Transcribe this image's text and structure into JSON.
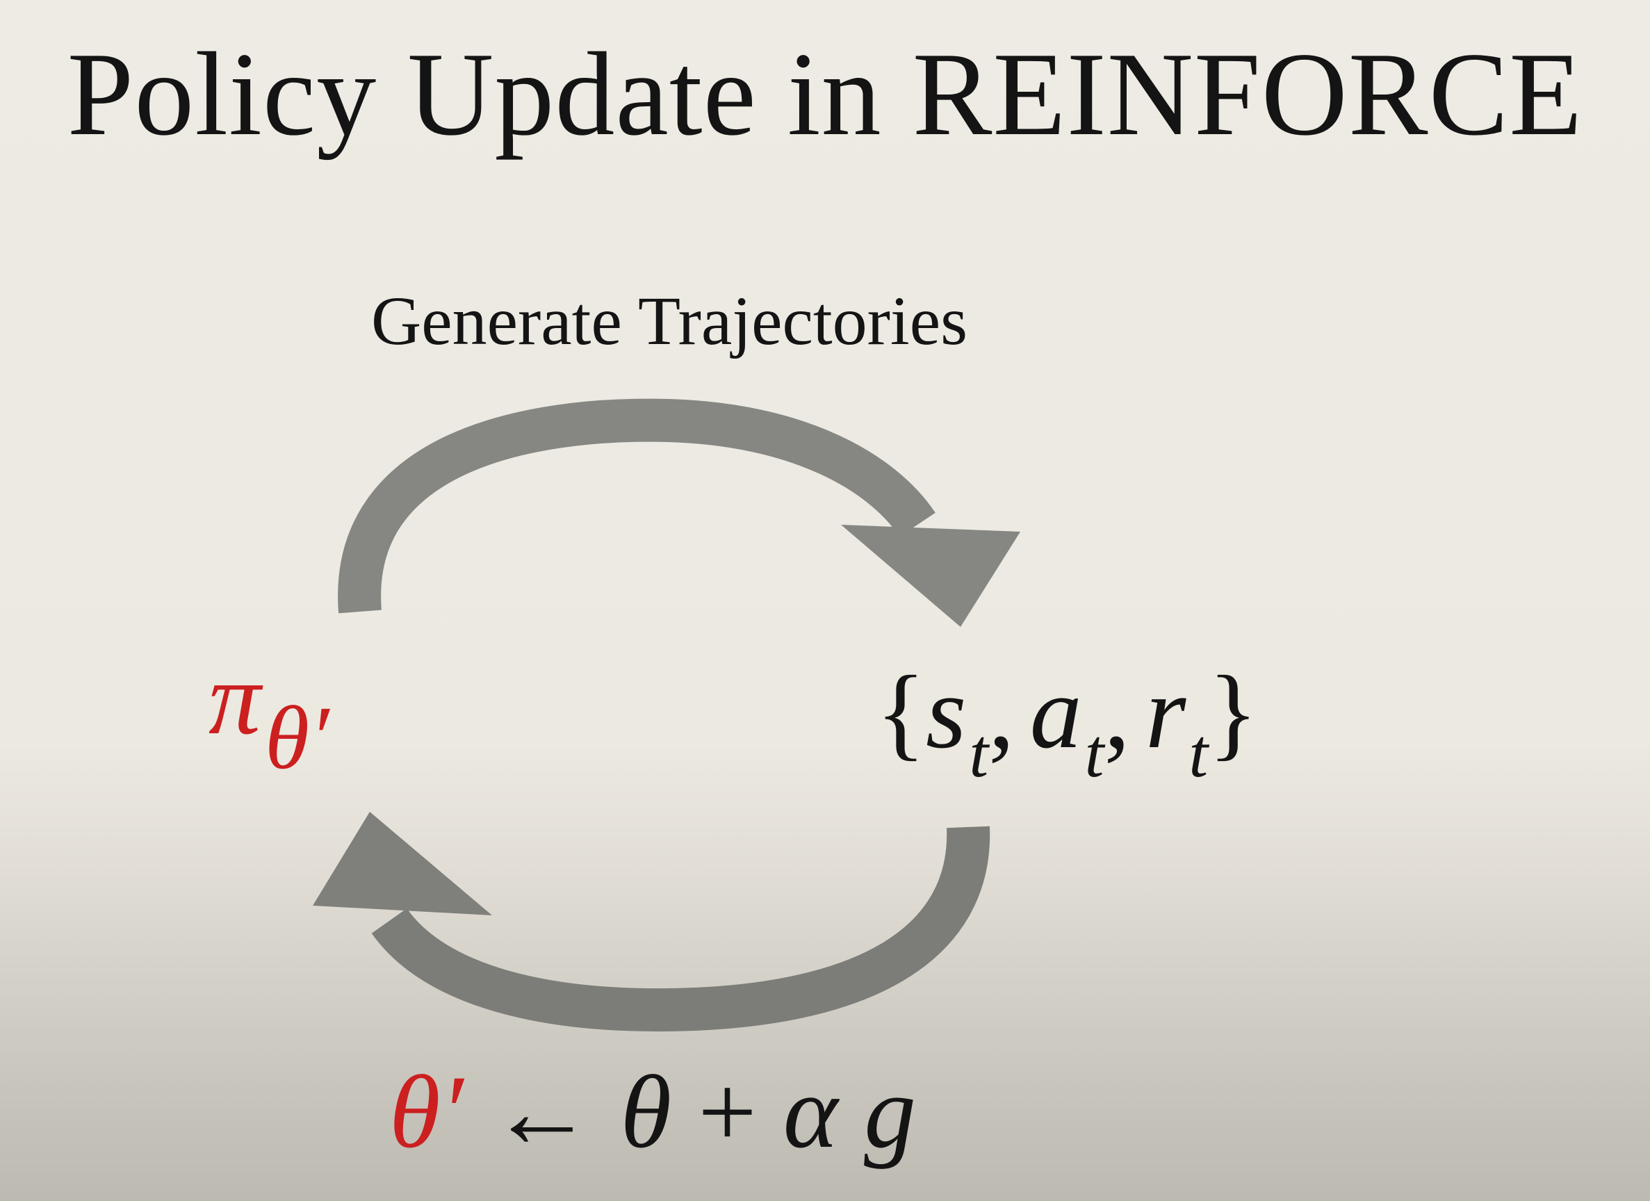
{
  "slide": {
    "title": "Policy Update in REINFORCE",
    "caption": "Generate Trajectories",
    "policy": {
      "symbol": "π",
      "subscript": "θ′"
    },
    "trajectory": {
      "open_brace": "{",
      "s": "s",
      "s_sub": "t",
      "a": "a",
      "a_sub": "t",
      "r": "r",
      "r_sub": "t",
      "comma": ",",
      "close_brace": "}"
    },
    "update_rule": {
      "lhs": "θ′",
      "arrow": "←",
      "theta": "θ",
      "plus": "+",
      "alpha": "α",
      "g": "g"
    }
  },
  "colors": {
    "arrow": "#868782",
    "arrow_dark": "#6f706b",
    "highlight": "#cc1f1f",
    "text": "#141414"
  },
  "icons": {
    "top_arrow": "curved-arrow-clockwise-icon",
    "bottom_arrow": "curved-arrow-return-icon"
  }
}
